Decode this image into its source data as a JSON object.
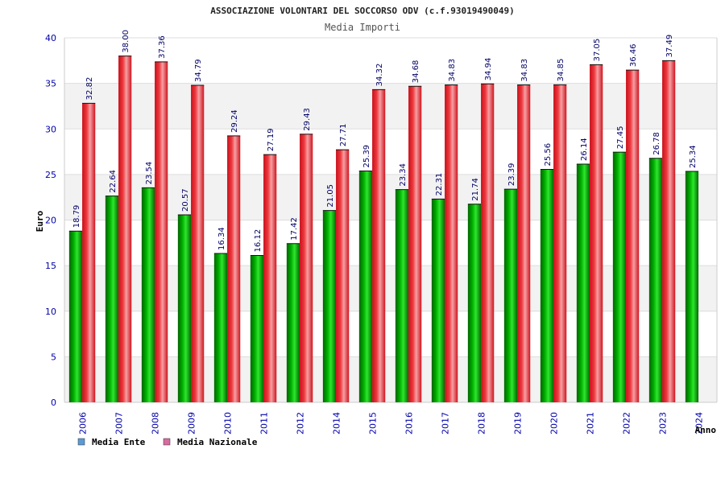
{
  "header": {
    "title": "ASSOCIAZIONE VOLONTARI DEL SOCCORSO ODV (c.f.93019490049)",
    "subtitle": "Media Importi"
  },
  "chart_data": {
    "type": "bar",
    "categories": [
      "2006",
      "2007",
      "2008",
      "2009",
      "2010",
      "2011",
      "2012",
      "2014",
      "2015",
      "2016",
      "2017",
      "2018",
      "2019",
      "2020",
      "2021",
      "2022",
      "2023",
      "2024"
    ],
    "series": [
      {
        "name": "Media Ente",
        "values": [
          18.79,
          22.64,
          23.54,
          20.57,
          16.34,
          16.12,
          17.42,
          21.05,
          25.39,
          23.34,
          22.31,
          21.74,
          23.39,
          25.56,
          26.14,
          27.45,
          26.78,
          25.34
        ],
        "labels": [
          "18.79",
          "22.64",
          "23.54",
          "20.57",
          "16.34",
          "16.12",
          "17.42",
          "21.05",
          "25.39",
          "23.34",
          "22.31",
          "21.74",
          "23.39",
          "25.56",
          "26.14",
          "27.45",
          "26.78",
          "25.34"
        ],
        "color": "#00a000"
      },
      {
        "name": "Media Nazionale",
        "values": [
          32.82,
          38.0,
          37.36,
          34.79,
          29.24,
          27.19,
          29.43,
          27.71,
          34.32,
          34.68,
          34.83,
          34.94,
          34.83,
          34.85,
          37.05,
          36.46,
          37.49,
          null
        ],
        "labels": [
          "32.82",
          "38.00",
          "37.36",
          "34.79",
          "29.24",
          "27.19",
          "29.43",
          "27.71",
          "34.32",
          "34.68",
          "34.83",
          "34.94",
          "34.83",
          "34.85",
          "37.05",
          "36.46",
          "37.49",
          ""
        ],
        "color": "#e8202a"
      }
    ],
    "xlabel": "Anno",
    "ylabel": "Euro",
    "ylim": [
      0,
      40
    ],
    "yticks": [
      0,
      5,
      10,
      15,
      20,
      25,
      30,
      35,
      40
    ],
    "ytick_labels": [
      "0",
      "5",
      "10",
      "15",
      "20",
      "25",
      "30",
      "35",
      "40"
    ],
    "grid": true,
    "legend_position": "bottom-left",
    "legend": [
      {
        "label": "Media Ente",
        "swatch": "#5b9bd5"
      },
      {
        "label": "Media Nazionale",
        "swatch": "#d86aa0"
      }
    ]
  }
}
